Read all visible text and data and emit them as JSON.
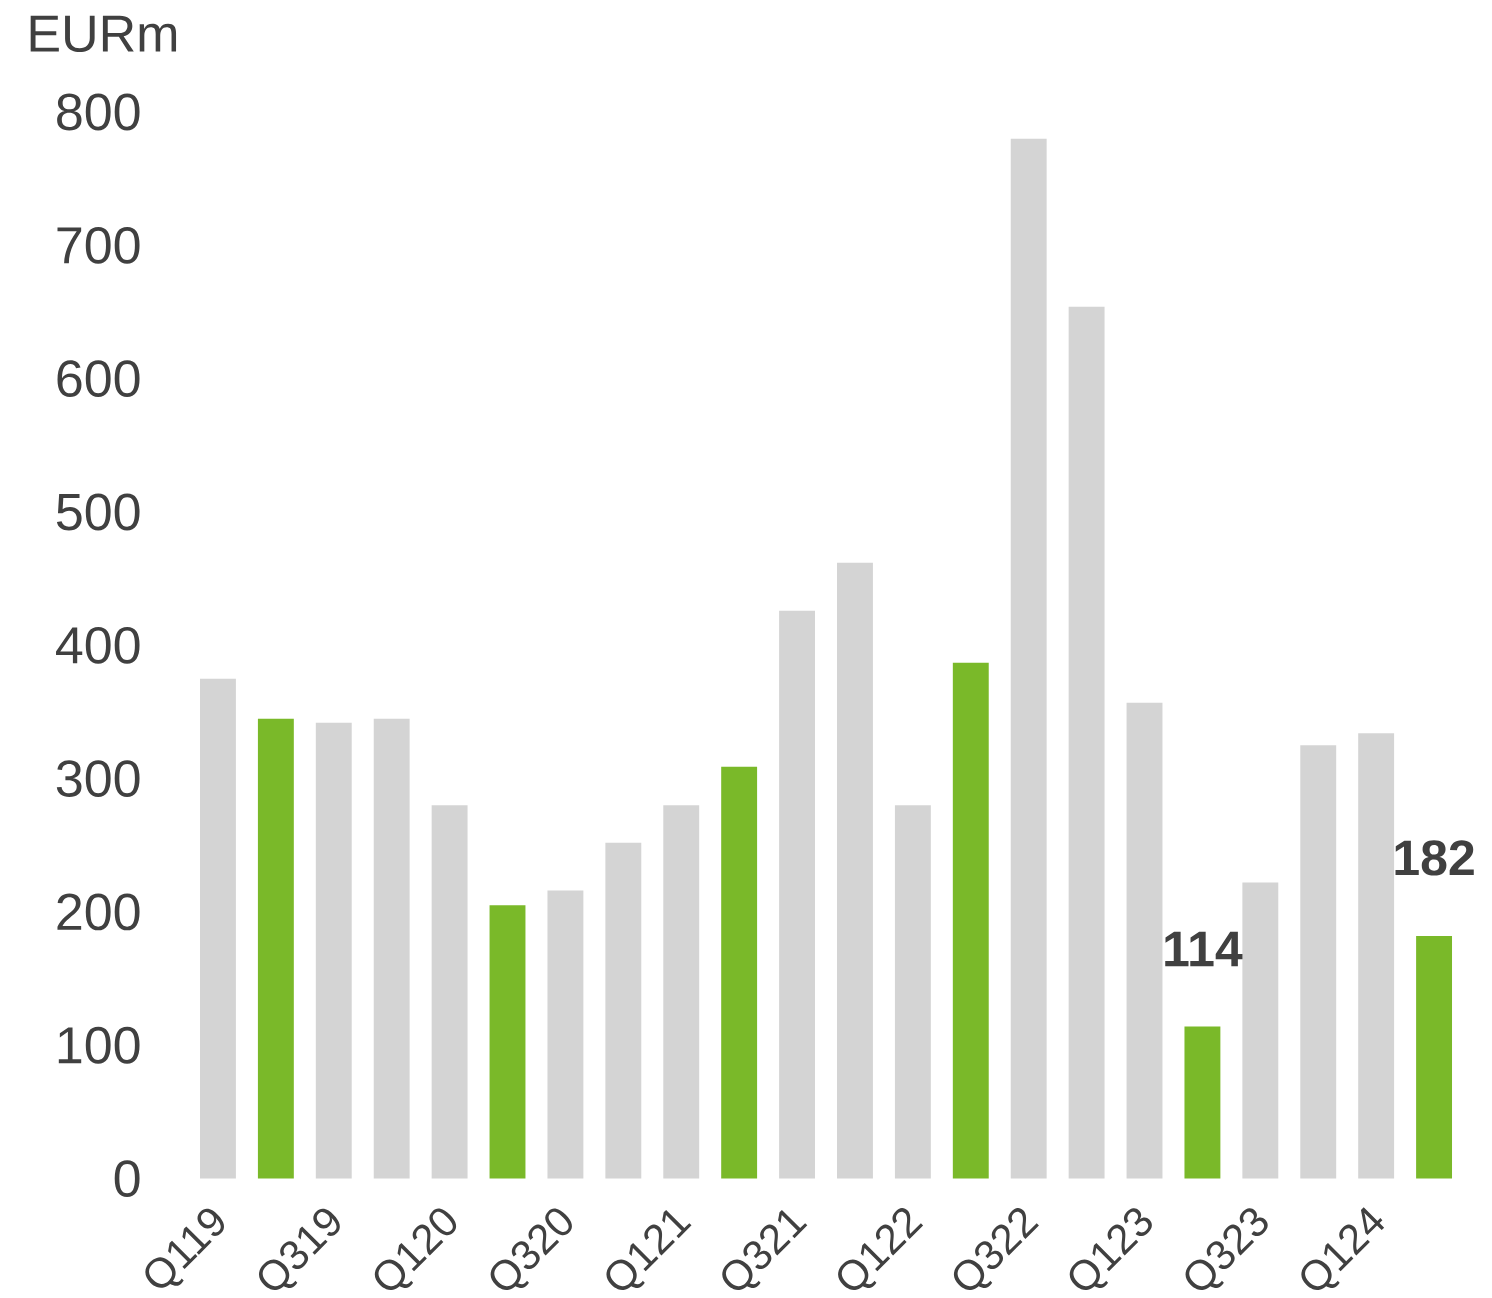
{
  "chart_data": {
    "type": "bar",
    "ylabel": "EURm",
    "categories": [
      "Q119",
      null,
      "Q319",
      null,
      "Q120",
      null,
      "Q320",
      null,
      "Q121",
      null,
      "Q321",
      null,
      "Q122",
      null,
      "Q322",
      null,
      "Q123",
      null,
      "Q323",
      null,
      "Q124",
      null
    ],
    "values": [
      375,
      345,
      342,
      345,
      280,
      205,
      216,
      252,
      280,
      309,
      426,
      462,
      280,
      387,
      780,
      654,
      357,
      114,
      222,
      325,
      334,
      182
    ],
    "colors": [
      "#d4d4d4",
      "#7ab929",
      "#d4d4d4",
      "#d4d4d4",
      "#d4d4d4",
      "#7ab929",
      "#d4d4d4",
      "#d4d4d4",
      "#d4d4d4",
      "#7ab929",
      "#d4d4d4",
      "#d4d4d4",
      "#d4d4d4",
      "#7ab929",
      "#d4d4d4",
      "#d4d4d4",
      "#d4d4d4",
      "#7ab929",
      "#d4d4d4",
      "#d4d4d4",
      "#d4d4d4",
      "#7ab929"
    ],
    "value_labels": [
      null,
      null,
      null,
      null,
      null,
      null,
      null,
      null,
      null,
      null,
      null,
      null,
      null,
      null,
      null,
      null,
      null,
      "114",
      null,
      null,
      null,
      "182"
    ],
    "ylim": [
      0,
      800
    ],
    "yticks": [
      0,
      100,
      200,
      300,
      400,
      500,
      600,
      700,
      800
    ]
  }
}
